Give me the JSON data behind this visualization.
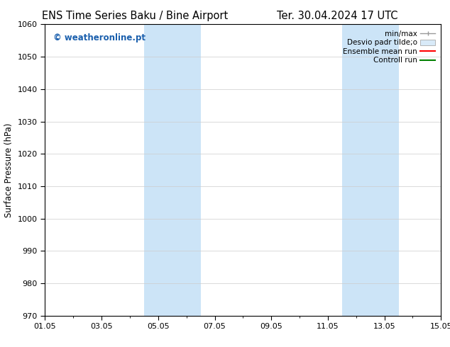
{
  "title_left": "ENS Time Series Baku / Bine Airport",
  "title_right": "Ter. 30.04.2024 17 UTC",
  "ylabel": "Surface Pressure (hPa)",
  "ylim": [
    970,
    1060
  ],
  "xlim": [
    0,
    14
  ],
  "yticks": [
    970,
    980,
    990,
    1000,
    1010,
    1020,
    1030,
    1040,
    1050,
    1060
  ],
  "xtick_labels": [
    "01.05",
    "03.05",
    "05.05",
    "07.05",
    "09.05",
    "11.05",
    "13.05",
    "15.05"
  ],
  "xtick_positions": [
    0,
    2,
    4,
    6,
    8,
    10,
    12,
    14
  ],
  "shaded_bands": [
    {
      "x_start": 3.5,
      "x_end": 5.5,
      "color": "#cce4f7"
    },
    {
      "x_start": 10.5,
      "x_end": 12.5,
      "color": "#cce4f7"
    }
  ],
  "watermark_text": "© weatheronline.pt",
  "watermark_color": "#1a5fad",
  "watermark_fontsize": 8.5,
  "bg_color": "#ffffff",
  "plot_bg": "#ffffff",
  "spine_color": "#000000",
  "tick_color": "#000000",
  "title_fontsize": 10.5,
  "tick_fontsize": 8,
  "axis_label_fontsize": 8.5,
  "legend_labels": [
    "min/max",
    "Desvio padr tilde;o",
    "Ensemble mean run",
    "Controll run"
  ],
  "legend_colors": [
    "#999999",
    "#c5dff0",
    "#ff0000",
    "#008000"
  ],
  "legend_fontsize": 7.5
}
